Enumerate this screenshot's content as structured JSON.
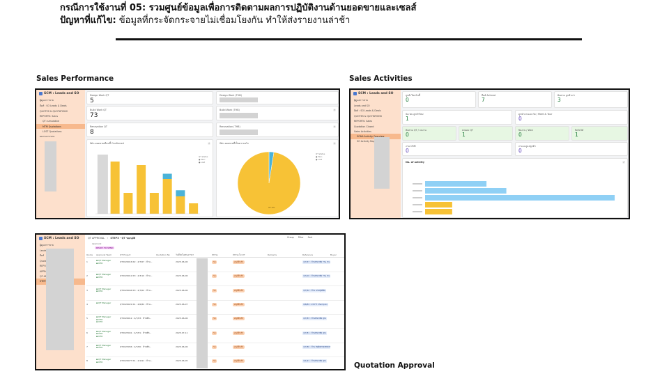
{
  "header": {
    "case_prefix": "กรณีการใช้งานที่ 05:",
    "case_title": "รวมศูนย์ข้อมูลเพื่อการติดตามผลการปฏิบัติงานด้านยอดขายและเซลส์",
    "problem_prefix": "ปัญหาที่แก้ไข:",
    "problem_text": "ข้อมูลที่กระจัดกระจายไม่เชื่อมโยงกัน ทำให้ส่งรายงานล่าช้า"
  },
  "sections": {
    "sales_performance": "Sales Performance",
    "sales_activities": "Sales Activities",
    "quotation_approval": "Quotation Approval"
  },
  "app": {
    "name": "SCM : Leads and SO",
    "sidebar_common": [
      "ผู้ดูแลการขาย",
      "Leads and SO",
      "ลีดส์",
      "REPORTS: Sales"
    ]
  },
  "perf": {
    "sidebar": [
      "ผู้ดูแลการขาย",
      "ลีดส์ : SO Leads & Deals",
      "QUOTES & QUOTATIONS",
      "REPORTS: Sales",
      "QT cumulative",
      "MTM Quotations",
      "LOST Quotations",
      "ผลงานการขาย"
    ],
    "cards_left": [
      {
        "title": "Design Work QT",
        "value": "5"
      },
      {
        "title": "Build Work QT",
        "value": "73"
      },
      {
        "title": "Renovation QT",
        "value": "8"
      }
    ],
    "cards_right": [
      {
        "title": "Design Work (THB)"
      },
      {
        "title": "Build Work (THB)"
      },
      {
        "title": "Renovation (THB)"
      }
    ],
    "bar_chart_title": "Win-ยอดขายเดือนนี้ Confirmed",
    "pie_chart_title": "Win-ยอดขายที่เป็นความจริง",
    "legend": [
      "QT status",
      "Won",
      "Lost",
      "Open"
    ],
    "pie_label_small": "2.5",
    "pie_label_main": "97.5%"
  },
  "chart_data": [
    {
      "type": "bar",
      "title": "Win-ยอดขายเดือนนี้ Confirmed",
      "categories": [
        "",
        "",
        "",
        "",
        "",
        "",
        "",
        ""
      ],
      "series": [
        {
          "name": "Won",
          "values": [
            0,
            3.0,
            1.2,
            2.8,
            1.2,
            2.0,
            1.0,
            0.6
          ]
        },
        {
          "name": "Lost",
          "values": [
            0,
            0,
            0,
            0,
            0,
            0.3,
            0.35,
            0
          ]
        }
      ],
      "reference_bar": 3.4,
      "ylim": [
        0,
        3.6
      ]
    },
    {
      "type": "pie",
      "title": "Win-ยอดขายที่เป็นความจริง",
      "slices": [
        {
          "name": "Won",
          "value": 97.5,
          "color": "#f7c236"
        },
        {
          "name": "Lost",
          "value": 2.5,
          "color": "#4bb3d8"
        }
      ]
    },
    {
      "type": "bar",
      "orientation": "horizontal",
      "title": "No. of activity",
      "categories": [
        "",
        "",
        "",
        "",
        ""
      ],
      "series": [
        {
          "name": "Activity",
          "values": [
            34,
            45,
            105,
            15,
            15
          ],
          "colors": [
            "#8fd0f5",
            "#8fd0f5",
            "#8fd0f5",
            "#f7c236",
            "#f7c236"
          ]
        }
      ],
      "xlim": [
        0,
        110
      ]
    }
  ],
  "activities": {
    "sidebar": [
      "ผู้ดูแลการขาย",
      "Leads and SO",
      "ลีดส์ : SO Leads & Deals",
      "QUOTES & QUOTATIONS",
      "REPORTS: Sales",
      "Quotation Closed",
      "Sales Activities",
      "SO&A Activity Overview",
      "SO Activity Report"
    ],
    "row1": [
      {
        "title": "ลูกค้าใหม่วันนี้",
        "value": "0"
      },
      {
        "title": "ลีดส์ Actived",
        "value": "7"
      },
      {
        "title": "ติดตาม ลูกค้าเก่า",
        "value": "3"
      }
    ],
    "row2": [
      {
        "title": "นัด พบ ลูกค้าใหม่",
        "value": "1"
      },
      {
        "title": "ดูหน้างานและวัด / Meet & Tour",
        "value": "0"
      }
    ],
    "row3": [
      {
        "title": "ติดตาม QT / จบงาน",
        "value": "0"
      },
      {
        "title": "ส่งมอบ QT",
        "value": "1"
      },
      {
        "title": "ปิดงาน / Won",
        "value": "0"
      },
      {
        "title": "ปิดไม่ได้",
        "value": "1"
      }
    ],
    "row4": [
      {
        "title": "งาน CRM",
        "value": "0"
      },
      {
        "title": "งาน อ.ดูแลลูกค้า",
        "value": "0"
      }
    ],
    "activity_chart_title": "No. of activity"
  },
  "quotation": {
    "breadcrumb": "QT APPROVAL",
    "step": "STEP3 - QT รออนุมัติ",
    "group_label": "Approval",
    "group_badge": "READY TO SEND",
    "toolbar": [
      "Group",
      "Filter",
      "Sort"
    ],
    "sidebar": [
      "ผู้ดูแลการขาย",
      "Leads and SO",
      "ลีดส์",
      "Quotes",
      "REPORTS",
      "APPROVALS",
      "QT APPROVAL",
      "STEP3 - QT รออนุมัติ"
    ],
    "columns": [
      "Quote",
      "Approval Team",
      "QT Project",
      "Quotation No",
      "วันที่ส่งใบเสนอราคา",
      "สถานะ",
      "สถานะใบ QT",
      "Remarks",
      "Reference",
      "Buyer"
    ],
    "rows": [
      {
        "no": "1",
        "team": [
          "QT Manager",
          "CEO"
        ],
        "project": "QT2026016 R2 : 4/7/67 : บ้าน...",
        "date": "2025-06-06",
        "status": "รอ",
        "qt": "อนุมัติแล้ว",
        "ref": "4/7/67 : บ้านพักอาศัย The Pro"
      },
      {
        "no": "2",
        "team": [
          "QT Manager",
          "CEO"
        ],
        "project": "QT2026012 R3 : 4/3/10 : บ้าน...",
        "date": "2025-06-06",
        "status": "รอ",
        "qt": "อนุมัติแล้ว",
        "ref": "4/3/10 : บ้านพักอาศัย The Pro"
      },
      {
        "no": "3",
        "team": [
          "QT Manager",
          "CEO"
        ],
        "project": "QT2026044 R3 : 4/7/62 : บ้าน...",
        "date": "2025-06-06",
        "status": "รอ",
        "qt": "อนุมัติแล้ว",
        "ref": "4/7/62 : บ้าน นายสุทธิชัย"
      },
      {
        "no": "4",
        "team": [
          "QT Manager"
        ],
        "project": "QT2026021 R1 : 4/6/84 : บ้าน...",
        "date": "2025-06-07",
        "status": "รอ",
        "qt": "อนุมัติแล้ว",
        "ref": "4/6/84 : อาคาร Champion"
      },
      {
        "no": "5",
        "team": [
          "QT Manager",
          "CEO",
          "CEO"
        ],
        "project": "QT2026012 : 4/7/83 : บ้านพัก...",
        "date": "2025-06-06",
        "status": "รอ",
        "qt": "อนุมัติแล้ว",
        "ref": "4/7/83 : บ้านพักอาศัย คุณ"
      },
      {
        "no": "6",
        "team": [
          "QT Manager",
          "CEO",
          "CEO"
        ],
        "project": "QT2025041 : 4/7/81 : บ้านพัก...",
        "date": "2025-07-11",
        "status": "รอ",
        "qt": "อนุมัติแล้ว",
        "ref": "4/7/81 : บ้านพักอาศัย คุณ"
      },
      {
        "no": "7",
        "team": [
          "QT Manager",
          "CEO"
        ],
        "project": "QT2025056 : 4/7/80 : บ้านพัก...",
        "date": "2025-06-06",
        "status": "รอ",
        "qt": "อนุมัติแล้ว",
        "ref": "4/7/80 : บ้าน ยินดีRESIDENCE"
      },
      {
        "no": "8",
        "team": [
          "QT Manager",
          "CEO"
        ],
        "project": "QT2026077 R1 : 4/1/91 : บ้าน...",
        "date": "2025-06-05",
        "status": "รอ",
        "qt": "อนุมัติแล้ว",
        "ref": "4/1/91 : บ้านพักอาศัย คุณ"
      }
    ]
  }
}
